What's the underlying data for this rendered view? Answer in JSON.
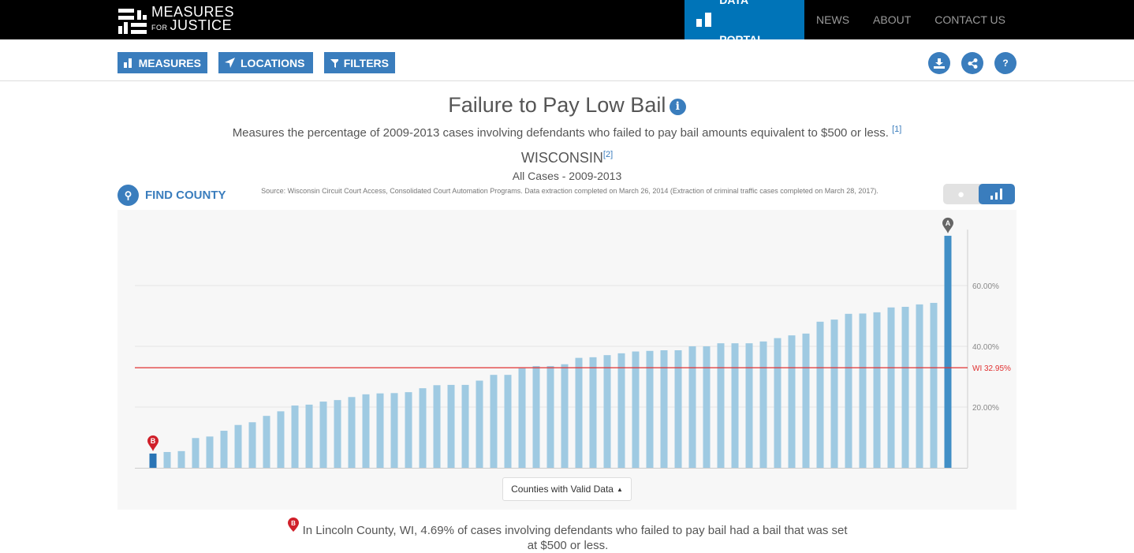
{
  "header": {
    "logo_line1": "MEASURES",
    "logo_for": "FOR",
    "logo_line2": "JUSTICE",
    "nav": [
      {
        "label": "DATA PORTAL",
        "active": true
      },
      {
        "label": "NEWS"
      },
      {
        "label": "ABOUT"
      },
      {
        "label": "CONTACT US"
      }
    ]
  },
  "toolbar": {
    "measures": "MEASURES",
    "locations": "LOCATIONS",
    "filters": "FILTERS",
    "help": "?",
    "icons": [
      "download-icon",
      "share-icon",
      "help-icon"
    ]
  },
  "page": {
    "title": "Failure to Pay Low Bail",
    "info_icon": "i",
    "description": "Measures the percentage of 2009-2013 cases involving defendants who failed to pay bail amounts equivalent to $500 or less.",
    "desc_ref": "[1]",
    "state": "WISCONSIN",
    "state_ref": "[2]",
    "subtitle": "All Cases - 2009-2013",
    "find_county": "FIND COUNTY",
    "source": "Source: Wisconsin Circuit Court Access, Consolidated Court Automation Programs. Data extraction completed on March 26, 2014 (Extraction of criminal traffic cases completed on March 28, 2017).",
    "dropdown": "Counties with Valid Data",
    "marker_b_text": "In Lincoln County, WI, 4.69% of cases involving defendants who failed to pay bail had a bail that was set at $500 or less."
  },
  "colors": {
    "bar": "#9fcae2",
    "highlight": "#2a74b5",
    "reference": "#e03030",
    "accent": "#3a7dbd",
    "nav_active": "#0074b8"
  },
  "chart_data": {
    "type": "bar",
    "ylim": [
      0,
      80
    ],
    "yticks": [
      20,
      40,
      60
    ],
    "ytick_labels": [
      "20.00%",
      "40.00%",
      "60.00%"
    ],
    "reference": {
      "value": 32.95,
      "label": "WI 32.95%"
    },
    "markers": [
      {
        "label": "B",
        "index": 0
      },
      {
        "label": "A",
        "index": 56
      }
    ],
    "values": [
      4.69,
      5.2,
      5.5,
      9.8,
      10.3,
      12.2,
      14.1,
      15.0,
      17.1,
      18.6,
      20.5,
      20.8,
      21.8,
      22.3,
      23.3,
      24.2,
      24.5,
      24.6,
      24.9,
      26.2,
      27.2,
      27.3,
      27.3,
      28.7,
      30.6,
      30.6,
      32.8,
      33.5,
      33.5,
      34.1,
      36.2,
      36.4,
      37.1,
      37.7,
      38.3,
      38.5,
      38.7,
      38.7,
      40.0,
      40.0,
      41.0,
      41.0,
      41.0,
      41.6,
      42.7,
      43.6,
      44.2,
      48.1,
      48.8,
      50.7,
      50.8,
      51.2,
      52.8,
      53.0,
      53.8,
      54.3,
      76.4
    ]
  }
}
